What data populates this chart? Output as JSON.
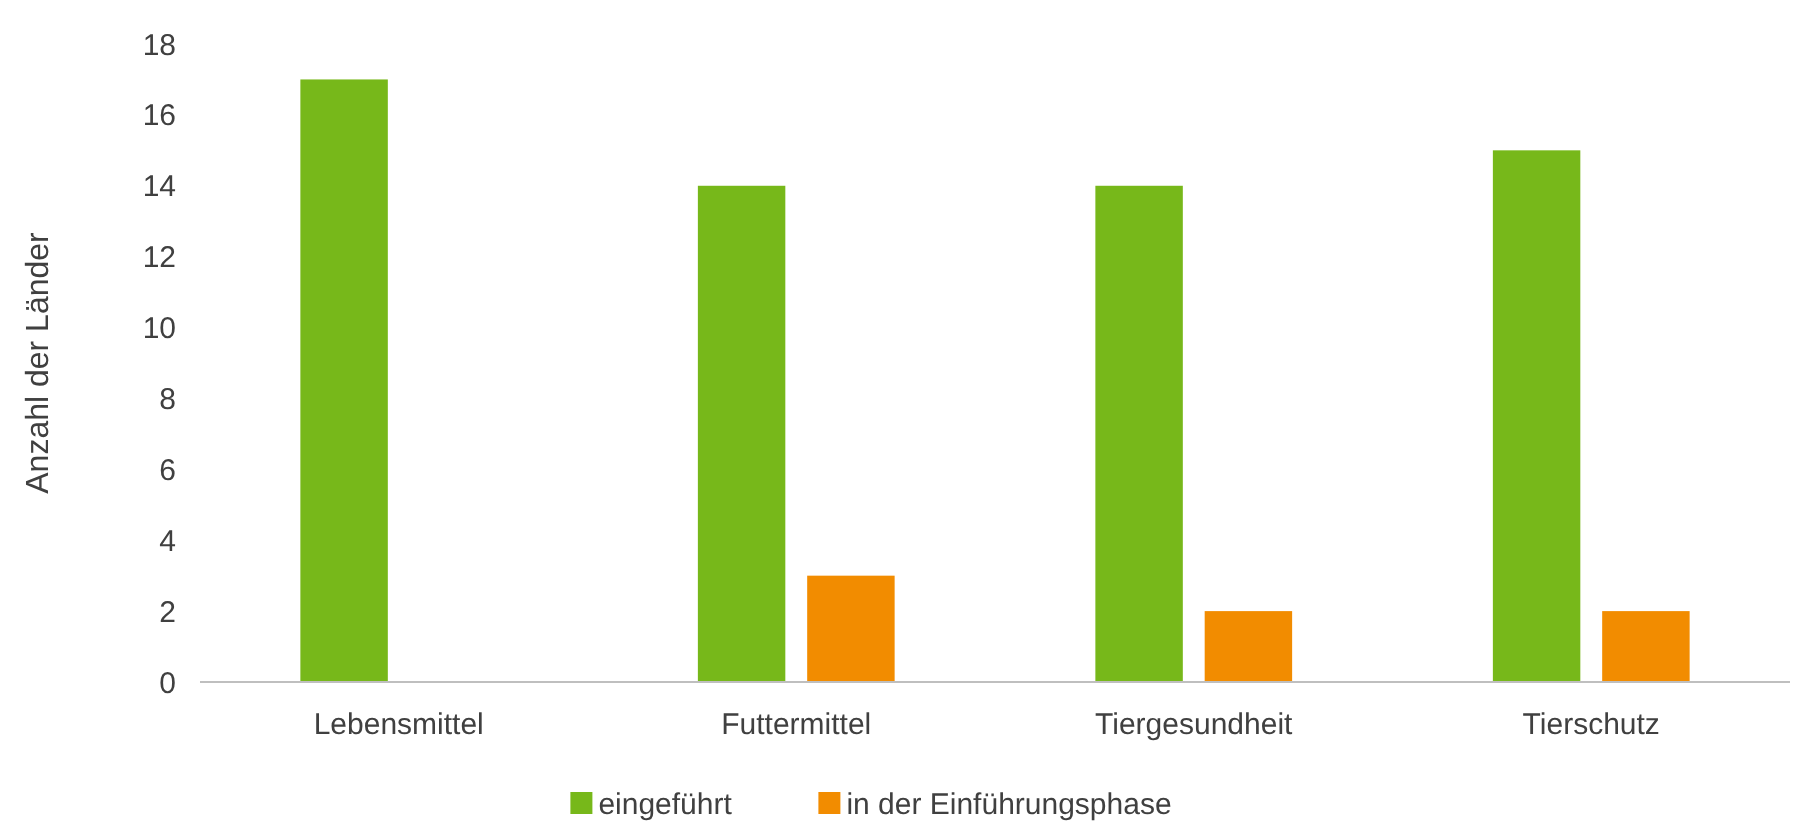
{
  "chart_data": {
    "type": "bar",
    "ylabel": "Anzahl der Länder",
    "categories": [
      "Lebensmittel",
      "Futtermittel",
      "Tiergesundheit",
      "Tierschutz"
    ],
    "series": [
      {
        "name": "eingeführt",
        "color": "#77b81a",
        "values": [
          17,
          14,
          14,
          15
        ]
      },
      {
        "name": "in der Einführungsphase",
        "color": "#f28c00",
        "values": [
          null,
          3,
          2,
          2
        ]
      }
    ],
    "ylim": [
      0,
      18
    ],
    "yticks": [
      0,
      2,
      4,
      6,
      8,
      10,
      12,
      14,
      16,
      18
    ],
    "grid": false,
    "legend": "bottom"
  }
}
